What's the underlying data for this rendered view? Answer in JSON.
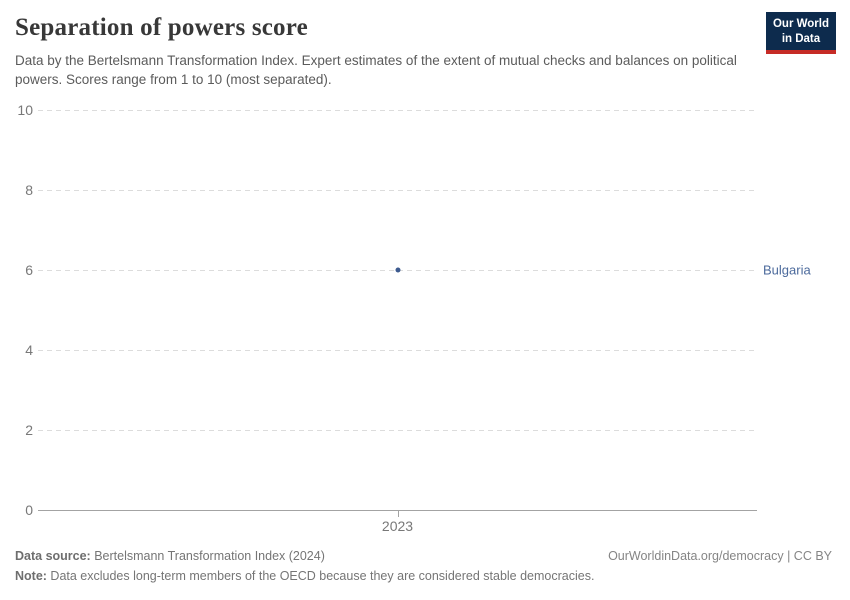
{
  "header": {
    "title": "Separation of powers score",
    "subtitle": "Data by the Bertelsmann Transformation Index. Expert estimates of the extent of mutual checks and balances on political powers. Scores range from 1 to 10 (most separated).",
    "logo": {
      "line1": "Our World",
      "line2": "in Data",
      "bg_color": "#0d2b4d",
      "stripe_color": "#c62b26"
    }
  },
  "chart_data": {
    "type": "scatter",
    "title": "Separation of powers score",
    "x": [
      2023
    ],
    "series": [
      {
        "name": "Bulgaria",
        "points": [
          {
            "x": 2023,
            "y": 6
          }
        ],
        "point_color": "#3d5a8f",
        "label_color": "#4c6a9c"
      }
    ],
    "xlabel": "",
    "ylabel": "",
    "ylim": [
      0,
      10
    ],
    "yticks": [
      0,
      2,
      4,
      6,
      8,
      10
    ],
    "xticks": [
      "2023"
    ],
    "grid": "horizontal-dashed",
    "gridline_color": "#dcdcdc",
    "axis_color": "#a3a3a3",
    "legend_position": "right-of-point"
  },
  "footer": {
    "source_label": "Data source:",
    "source_text": " Bertelsmann Transformation Index (2024)",
    "attribution": "OurWorldinData.org/democracy | CC BY",
    "note_label": "Note:",
    "note_text": " Data excludes long-term members of the OECD because they are considered stable democracies."
  }
}
